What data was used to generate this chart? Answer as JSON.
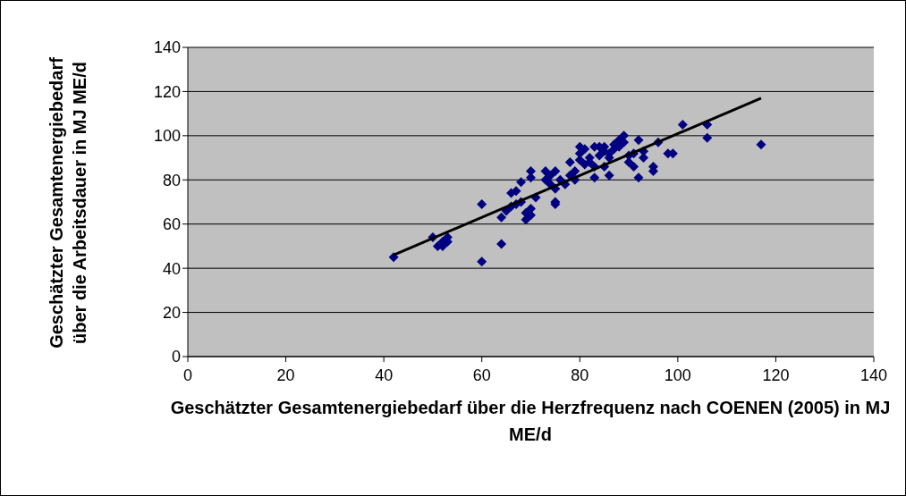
{
  "chart_data": {
    "type": "scatter",
    "xlabel": "Geschätzter Gesamtenergiebedarf über die Herzfrequenz nach COENEN (2005) in MJ ME/d",
    "ylabel": "Geschätzter Gesamtenergiebedarf über die Arbeitsdauer in MJ ME/d",
    "xlim": [
      0,
      140
    ],
    "xticks": [
      0,
      20,
      40,
      60,
      80,
      100,
      120,
      140
    ],
    "ylim": [
      0,
      140
    ],
    "yticks": [
      0,
      20,
      40,
      60,
      80,
      100,
      120,
      140
    ],
    "grid": "y",
    "marker": "diamond",
    "series": [
      {
        "color": "#000080",
        "x": [
          42,
          50,
          51,
          52,
          52,
          53,
          53,
          60,
          60,
          64,
          64,
          65,
          66,
          66,
          67,
          67,
          68,
          68,
          69,
          69,
          70,
          70,
          70,
          70,
          71,
          73,
          73,
          74,
          74,
          75,
          75,
          75,
          75,
          76,
          77,
          78,
          78,
          79,
          79,
          80,
          80,
          80,
          81,
          81,
          82,
          82,
          83,
          83,
          83,
          84,
          84,
          85,
          85,
          85,
          86,
          86,
          86,
          87,
          87,
          88,
          88,
          89,
          89,
          90,
          90,
          91,
          91,
          92,
          92,
          93,
          93,
          95,
          95,
          96,
          98,
          99,
          101,
          106,
          106,
          117
        ],
        "values": [
          45,
          54,
          50,
          52,
          50,
          54,
          52,
          69,
          43,
          51,
          63,
          66,
          68,
          74,
          75,
          69,
          79,
          70,
          62,
          65,
          64,
          67,
          84,
          81,
          72,
          84,
          80,
          82,
          78,
          84,
          76,
          70,
          69,
          80,
          78,
          82,
          88,
          84,
          80,
          95,
          89,
          92,
          87,
          94,
          90,
          88,
          95,
          81,
          86,
          91,
          95,
          93,
          86,
          95,
          82,
          90,
          92,
          94,
          96,
          98,
          95,
          100,
          97,
          88,
          91,
          86,
          92,
          98,
          81,
          90,
          93,
          86,
          84,
          97,
          92,
          92,
          105,
          105,
          99,
          96
        ]
      },
      {
        "type": "line",
        "color": "#000000",
        "marker": "none",
        "x": [
          42,
          117
        ],
        "values": [
          46,
          117
        ]
      }
    ]
  }
}
